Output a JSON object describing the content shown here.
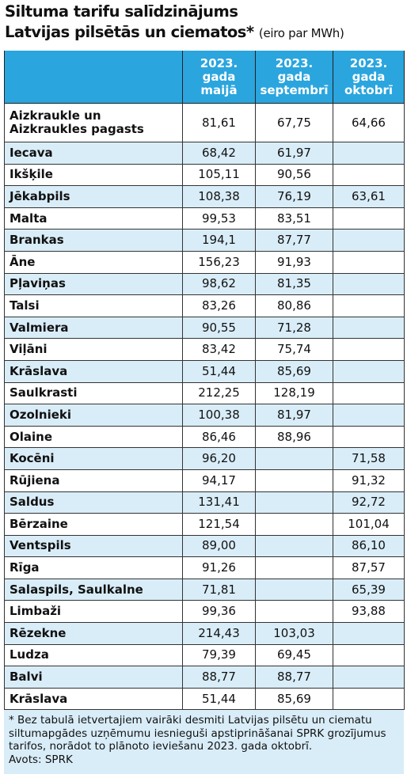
{
  "header": {
    "title_line1": "Siltuma tarifu salīdzinājums",
    "title_line2": "Latvijas pilsētās un ciematos*",
    "unit": "(eiro par MWh)"
  },
  "table": {
    "columns": [
      "2023.\ngada\nmaijā",
      "2023.\ngada\nseptembrī",
      "2023.\ngada\noktobrī"
    ],
    "rows": [
      [
        "Aizkraukle un\nAizkraukles pagasts",
        "81,61",
        "67,75",
        "64,66"
      ],
      [
        "Iecava",
        "68,42",
        "61,97",
        null
      ],
      [
        "Ikšķile",
        "105,11",
        "90,56",
        null
      ],
      [
        "Jēkabpils",
        "108,38",
        "76,19",
        "63,61"
      ],
      [
        "Malta",
        "99,53",
        "83,51",
        null
      ],
      [
        "Brankas",
        "194,1",
        "87,77",
        null
      ],
      [
        "Āne",
        "156,23",
        "91,93",
        null
      ],
      [
        "Pļaviņas",
        "98,62",
        "81,35",
        null
      ],
      [
        "Talsi",
        "83,26",
        "80,86",
        null
      ],
      [
        "Valmiera",
        "90,55",
        "71,28",
        null
      ],
      [
        "Viļāni",
        "83,42",
        "75,74",
        null
      ],
      [
        "Krāslava",
        "51,44",
        "85,69",
        null
      ],
      [
        "Saulkrasti",
        "212,25",
        "128,19",
        null
      ],
      [
        "Ozolnieki",
        "100,38",
        "81,97",
        null
      ],
      [
        "Olaine",
        "86,46",
        "88,96",
        null
      ],
      [
        "Kocēni",
        "96,20",
        null,
        "71,58"
      ],
      [
        "Rūjiena",
        "94,17",
        null,
        "91,32"
      ],
      [
        "Saldus",
        "131,41",
        null,
        "92,72"
      ],
      [
        "Bērzaine",
        "121,54",
        null,
        "101,04"
      ],
      [
        "Ventspils",
        "89,00",
        null,
        "86,10"
      ],
      [
        "Rīga",
        "91,26",
        null,
        "87,57"
      ],
      [
        "Salaspils, Saulkalne",
        "71,81",
        null,
        "65,39"
      ],
      [
        "Limbaži",
        "99,36",
        null,
        "93,88"
      ],
      [
        "Rēzekne",
        "214,43",
        "103,03",
        null
      ],
      [
        "Ludza",
        "79,39",
        "69,45",
        null
      ],
      [
        "Balvi",
        "88,77",
        "88,77",
        null
      ],
      [
        "Krāslava",
        "51,44",
        "85,69",
        null
      ]
    ]
  },
  "footnote": {
    "text": "* Bez tabulā ietvertajiem vairāki desmiti Latvijas pilsētu un ciematu siltumapgādes uzņēmumu iesnieguši apstiprināšanai SPRK grozījumus tarifos, norādot to plānoto ieviešanu 2023. gada oktobrī.",
    "source": "Avots: SPRK"
  }
}
